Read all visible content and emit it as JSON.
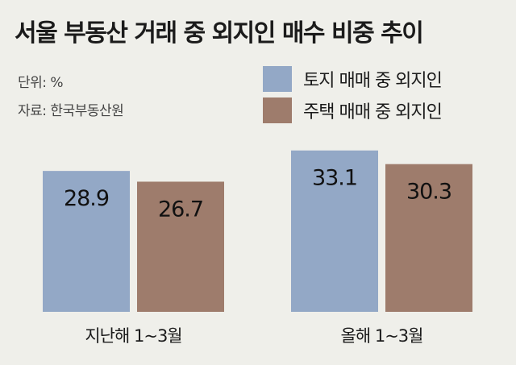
{
  "title": "서울 부동산 거래 중 외지인 매수 비중 추이",
  "unit": "단위: %",
  "source": "자료: 한국부동산원",
  "chart_data": {
    "type": "bar",
    "categories": [
      "지난해 1~3월",
      "올해 1~3월"
    ],
    "series": [
      {
        "name": "토지 매매 중 외지인",
        "color": "#93a8c6",
        "values": [
          28.9,
          33.1
        ]
      },
      {
        "name": "주택 매매 중 외지인",
        "color": "#9e7c6c",
        "values": [
          26.7,
          30.3
        ]
      }
    ],
    "ylim": [
      0,
      38
    ],
    "grid": false,
    "legend": "top-right"
  }
}
